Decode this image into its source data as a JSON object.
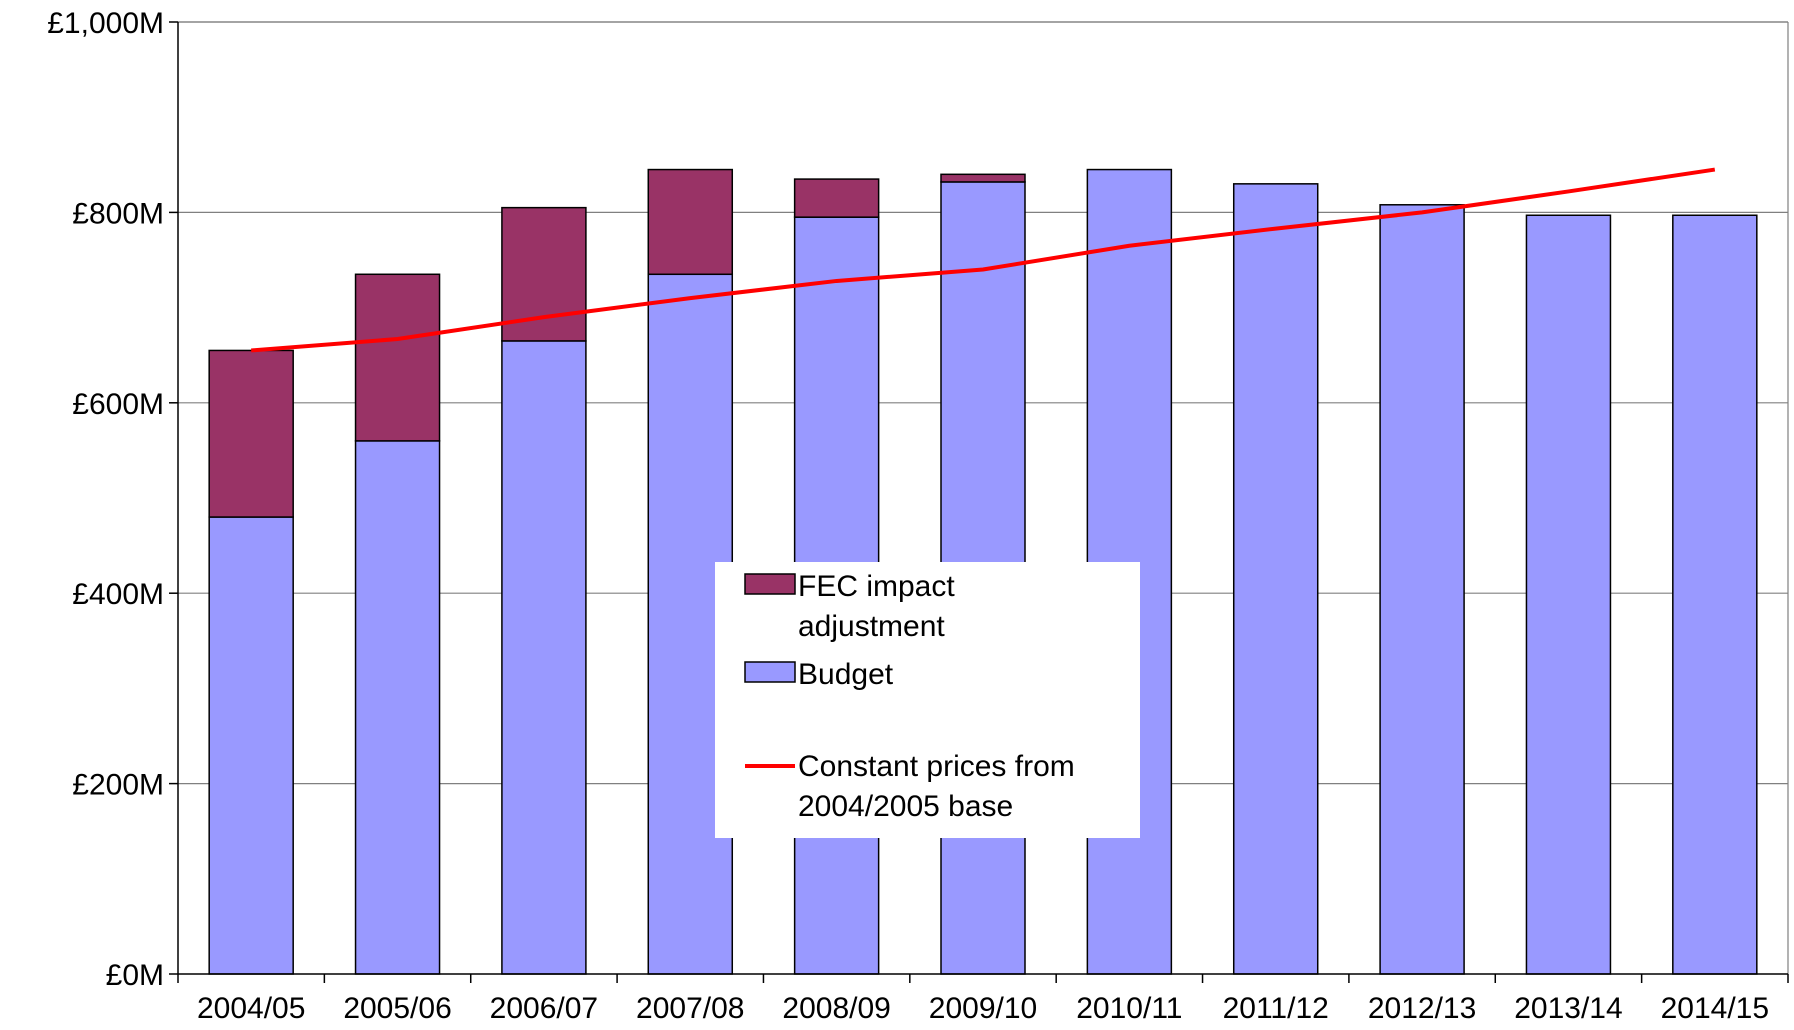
{
  "chart_data": {
    "type": "bar",
    "stacked": true,
    "categories": [
      "2004/05",
      "2005/06",
      "2006/07",
      "2007/08",
      "2008/09",
      "2009/10",
      "2010/11",
      "2011/12",
      "2012/13",
      "2013/14",
      "2014/15"
    ],
    "series": [
      {
        "name": "Budget",
        "kind": "bar",
        "color": "#9999FF",
        "values": [
          480,
          560,
          665,
          735,
          795,
          832,
          845,
          830,
          808,
          797,
          797
        ]
      },
      {
        "name": "FEC impact adjustment",
        "kind": "bar",
        "color": "#993366",
        "values": [
          175,
          175,
          140,
          110,
          40,
          8,
          0,
          0,
          0,
          0,
          0
        ]
      },
      {
        "name": "Constant prices from 2004/2005 base",
        "kind": "line",
        "color": "#FF0000",
        "values": [
          655,
          667,
          690,
          710,
          728,
          740,
          765,
          783,
          800,
          822,
          845
        ]
      }
    ],
    "y_ticks": [
      "£0M",
      "£200M",
      "£400M",
      "£600M",
      "£800M",
      "£1,000M"
    ],
    "ylim": [
      0,
      1000
    ],
    "grid": true,
    "legend_position": "center",
    "legend": [
      {
        "label_lines": [
          "FEC impact",
          "adjustment"
        ],
        "series": "FEC impact adjustment"
      },
      {
        "label_lines": [
          "Budget"
        ],
        "series": "Budget"
      },
      {
        "label_lines": [
          "Constant prices from",
          "2004/2005 base"
        ],
        "series": "Constant prices from 2004/2005 base"
      }
    ]
  }
}
